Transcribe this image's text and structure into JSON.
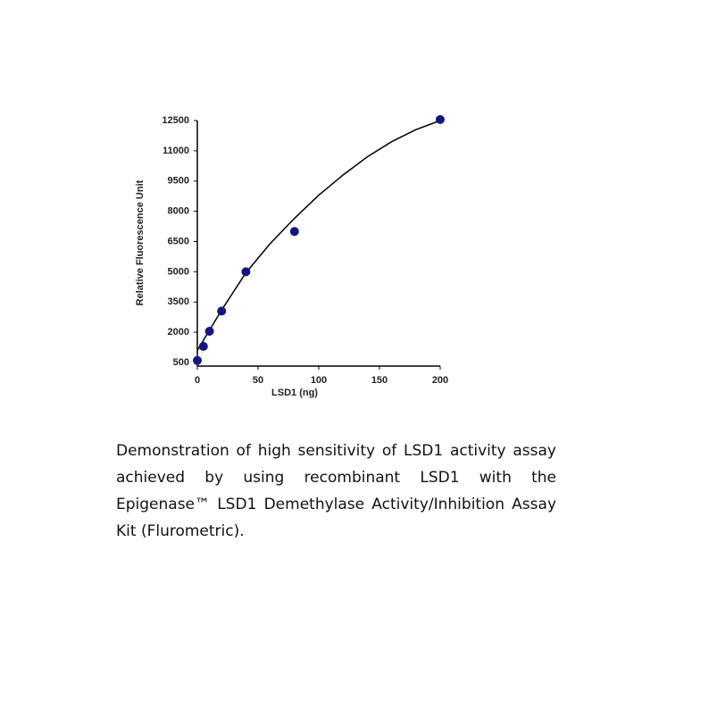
{
  "chart_data": {
    "type": "scatter",
    "x_label": "LSD1 (ng)",
    "y_label": "Relative Fluorescence Unit",
    "x": [
      0,
      5,
      10,
      20,
      40,
      80,
      200
    ],
    "values": [
      600,
      1300,
      2050,
      3050,
      5000,
      7000,
      12550
    ],
    "color": "#15157f",
    "fit": {
      "x": [
        0,
        20,
        40,
        60,
        80,
        100,
        120,
        140,
        160,
        180,
        200
      ],
      "values": [
        1100,
        3100,
        4950,
        6400,
        7650,
        8800,
        9800,
        10700,
        11450,
        12050,
        12500
      ],
      "color": "#000000"
    },
    "xlim": [
      0,
      200
    ],
    "xticks": [
      0,
      50,
      100,
      150,
      200
    ],
    "ylim": [
      500,
      12500
    ],
    "yticks": [
      500,
      2000,
      3500,
      5000,
      6500,
      8000,
      9500,
      11000,
      12500
    ]
  },
  "caption": "Demonstration of high sensitivity of LSD1 activity assay achieved by using recombinant LSD1 with the Epigenase™ LSD1 Demethylase Activity/Inhibition Assay Kit (Flurometric)."
}
